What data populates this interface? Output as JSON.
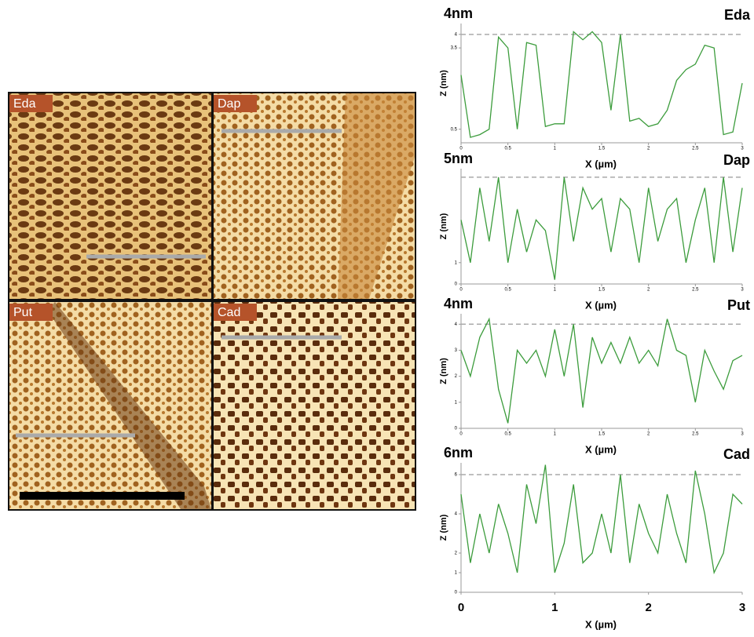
{
  "images": [
    {
      "label": "Eda"
    },
    {
      "label": "Dap"
    },
    {
      "label": "Put"
    },
    {
      "label": "Cad"
    }
  ],
  "chart_data": [
    {
      "type": "line",
      "title": "4nm",
      "label": "Eda",
      "xlabel": "X (µm)",
      "ylabel": "Z (nm)",
      "color": "#3c9c3c",
      "ref_line": 4,
      "x": [
        0,
        0.1,
        0.2,
        0.3,
        0.4,
        0.5,
        0.6,
        0.7,
        0.8,
        0.9,
        1,
        1.1,
        1.2,
        1.3,
        1.4,
        1.5,
        1.6,
        1.7,
        1.8,
        1.9,
        2,
        2.1,
        2.2,
        2.3,
        2.4,
        2.5,
        2.6,
        2.7,
        2.8,
        2.9,
        3
      ],
      "values": [
        2.5,
        0.2,
        0.3,
        0.5,
        3.9,
        3.5,
        0.5,
        3.7,
        3.6,
        0.6,
        0.7,
        0.7,
        4.1,
        3.8,
        4.1,
        3.7,
        1.2,
        4,
        0.8,
        0.9,
        0.6,
        0.7,
        1.2,
        2.3,
        2.7,
        2.9,
        3.6,
        3.5,
        0.3,
        0.4,
        2.2
      ],
      "xlim": [
        0,
        3
      ],
      "ylim": [
        0,
        4.4
      ],
      "xticks": [
        0,
        0.5,
        1,
        1.5,
        2,
        2.5,
        3
      ],
      "yticks": [
        0.5,
        3.5,
        4
      ]
    },
    {
      "type": "line",
      "title": "5nm",
      "label": "Dap",
      "xlabel": "X (µm)",
      "ylabel": "Z (nm)",
      "color": "#3c9c3c",
      "ref_line": 5,
      "x": [
        0,
        0.1,
        0.2,
        0.3,
        0.4,
        0.5,
        0.6,
        0.7,
        0.8,
        0.9,
        1,
        1.1,
        1.2,
        1.3,
        1.4,
        1.5,
        1.6,
        1.7,
        1.8,
        1.9,
        2,
        2.1,
        2.2,
        2.3,
        2.4,
        2.5,
        2.6,
        2.7,
        2.8,
        2.9,
        3
      ],
      "values": [
        3,
        1,
        4.5,
        2,
        5,
        1,
        3.5,
        1.5,
        3,
        2.5,
        0.2,
        5,
        2,
        4.5,
        3.5,
        4,
        1.5,
        4,
        3.5,
        1,
        4.5,
        2,
        3.5,
        4,
        1,
        3,
        4.5,
        1,
        5,
        1.5,
        4.5
      ],
      "xlim": [
        0,
        3
      ],
      "ylim": [
        0,
        5.4
      ],
      "xticks": [
        0,
        0.5,
        1,
        1.5,
        2,
        2.5,
        3
      ],
      "yticks": [
        0,
        1
      ]
    },
    {
      "type": "line",
      "title": "4nm",
      "label": "Put",
      "xlabel": "X (µm)",
      "ylabel": "Z (nm)",
      "color": "#3c9c3c",
      "ref_line": 4,
      "x": [
        0,
        0.1,
        0.2,
        0.3,
        0.4,
        0.5,
        0.6,
        0.7,
        0.8,
        0.9,
        1,
        1.1,
        1.2,
        1.3,
        1.4,
        1.5,
        1.6,
        1.7,
        1.8,
        1.9,
        2,
        2.1,
        2.2,
        2.3,
        2.4,
        2.5,
        2.6,
        2.7,
        2.8,
        2.9,
        3
      ],
      "values": [
        3,
        2,
        3.5,
        4.2,
        1.5,
        0.2,
        3,
        2.5,
        3,
        2,
        3.8,
        2,
        4,
        0.8,
        3.5,
        2.5,
        3.3,
        2.5,
        3.5,
        2.5,
        3,
        2.4,
        4.2,
        3,
        2.8,
        1,
        3,
        2.2,
        1.5,
        2.6,
        2.8
      ],
      "xlim": [
        0,
        3
      ],
      "ylim": [
        0,
        4.4
      ],
      "xticks": [
        0,
        0.5,
        1,
        1.5,
        2,
        2.5,
        3
      ],
      "yticks": [
        0,
        1,
        2,
        3,
        4
      ]
    },
    {
      "type": "line",
      "title": "6nm",
      "label": "Cad",
      "xlabel": "X (µm)",
      "ylabel": "Z (nm)",
      "color": "#3c9c3c",
      "ref_line": 6,
      "x": [
        0,
        0.1,
        0.2,
        0.3,
        0.4,
        0.5,
        0.6,
        0.7,
        0.8,
        0.9,
        1,
        1.1,
        1.2,
        1.3,
        1.4,
        1.5,
        1.6,
        1.7,
        1.8,
        1.9,
        2,
        2.1,
        2.2,
        2.3,
        2.4,
        2.5,
        2.6,
        2.7,
        2.8,
        2.9,
        3
      ],
      "values": [
        5,
        1.5,
        4,
        2,
        4.5,
        3,
        1,
        5.5,
        3.5,
        6.5,
        1,
        2.5,
        5.5,
        1.5,
        2,
        4,
        2,
        6,
        1.5,
        4.5,
        3,
        2,
        5,
        3,
        1.5,
        6.2,
        4,
        1,
        2,
        5,
        4.5
      ],
      "xlim": [
        0,
        3
      ],
      "ylim": [
        0,
        6.6
      ],
      "xticks": [
        0,
        1,
        2,
        3
      ],
      "yticks": [
        0,
        1,
        2,
        4,
        6
      ]
    }
  ]
}
